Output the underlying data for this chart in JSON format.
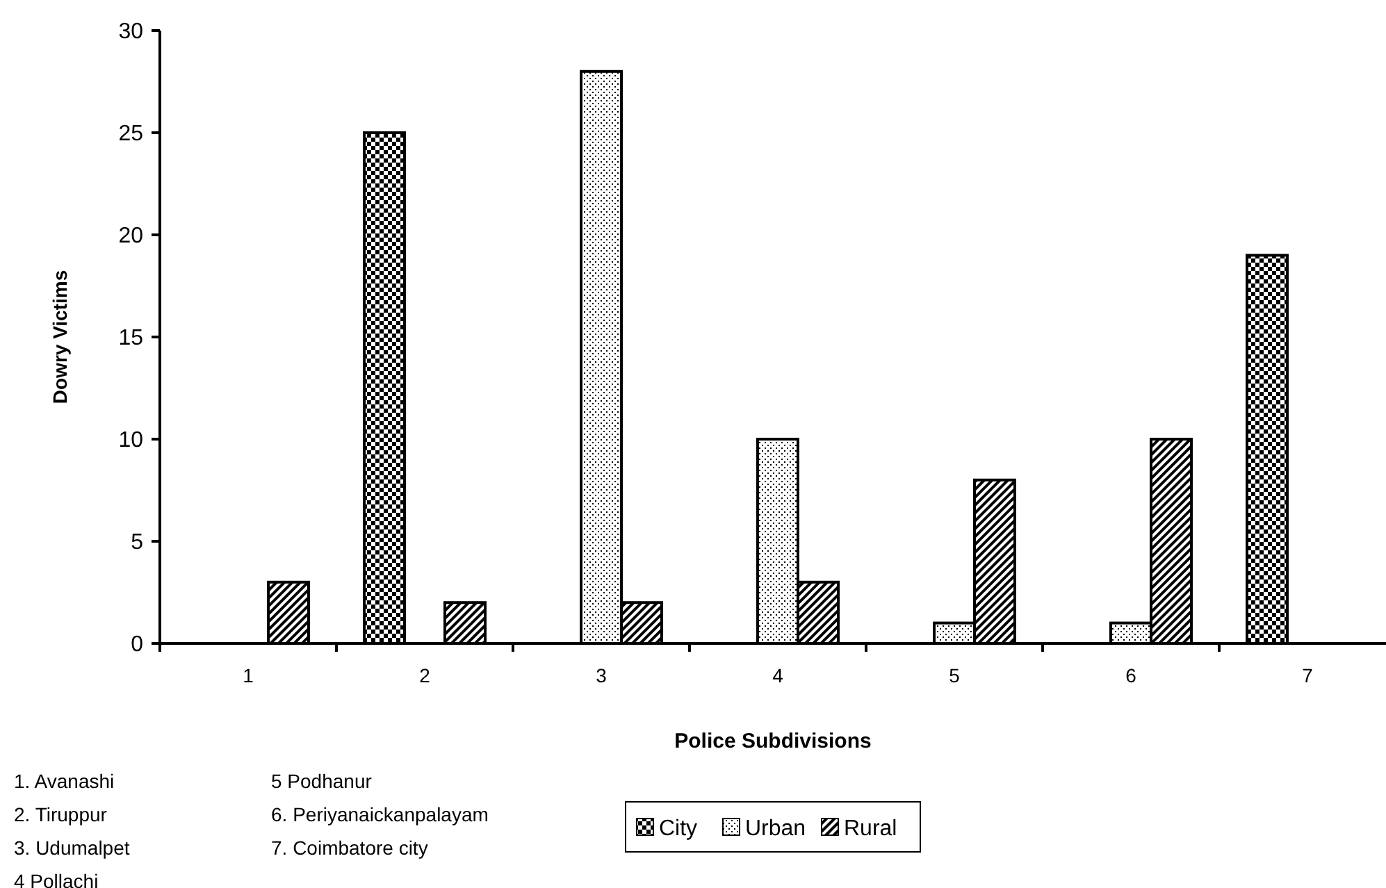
{
  "chart_data": {
    "type": "bar",
    "xlabel": "Police Subdivisions",
    "ylabel": "Dowry Victims",
    "categories": [
      "1",
      "2",
      "3",
      "4",
      "5",
      "6",
      "7"
    ],
    "series": [
      {
        "name": "City",
        "color": "#000000",
        "values": [
          null,
          25,
          null,
          null,
          null,
          null,
          19
        ]
      },
      {
        "name": "Urban",
        "color": "#000000",
        "values": [
          null,
          null,
          28,
          10,
          1,
          1,
          null
        ]
      },
      {
        "name": "Rural",
        "color": "#000000",
        "values": [
          3,
          2,
          2,
          3,
          8,
          10,
          null
        ]
      }
    ],
    "ylim": [
      0,
      30
    ],
    "yticks": [
      0,
      5,
      10,
      15,
      20,
      25,
      30
    ],
    "grid": false,
    "legend": "bottom",
    "annotations": [
      "1. Avanashi",
      "2. Tiruppur",
      "3. Udumalpet",
      "4 Pollachi",
      "5 Podhanur",
      "6. Periyanaickanpalayam",
      "7. Coimbatore city"
    ]
  }
}
